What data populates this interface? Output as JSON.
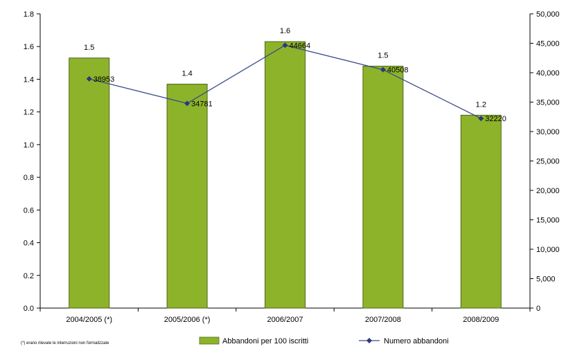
{
  "chart_data": {
    "type": "bar",
    "categories": [
      "2004/2005 (*)",
      "2005/2006 (*)",
      "2006/2007",
      "2007/2008",
      "2008/2009"
    ],
    "series": [
      {
        "name": "Abbandoni per 100 iscritti",
        "type": "bar",
        "axis": "left",
        "values": [
          1.5,
          1.4,
          1.6,
          1.5,
          1.2
        ],
        "labels": [
          "1.5",
          "1.4",
          "1.6",
          "1.5",
          "1.2"
        ],
        "bar_heights": [
          1.53,
          1.37,
          1.63,
          1.48,
          1.18
        ],
        "color": "#8DB32B"
      },
      {
        "name": "Numero abbandoni",
        "type": "line",
        "axis": "right",
        "values": [
          38953,
          34781,
          44664,
          40508,
          32220
        ],
        "labels": [
          "38953",
          "34781",
          "44664",
          "40508",
          "32220"
        ],
        "color": "#3A4A8C"
      }
    ],
    "y_left": {
      "ylim": [
        0,
        1.8
      ],
      "ticks": [
        "0.0",
        "0.2",
        "0.4",
        "0.6",
        "0.8",
        "1.0",
        "1.2",
        "1.4",
        "1.6",
        "1.8"
      ]
    },
    "y_right": {
      "ylim": [
        0,
        50000
      ],
      "ticks": [
        "0",
        "5,000",
        "10,000",
        "15,000",
        "20,000",
        "25,000",
        "30,000",
        "35,000",
        "40,000",
        "45,000",
        "50,000"
      ]
    },
    "grid": false,
    "legend_placement": "bottom",
    "footnote": "(*) erano rilevate le interruzioni non formalizzate"
  }
}
